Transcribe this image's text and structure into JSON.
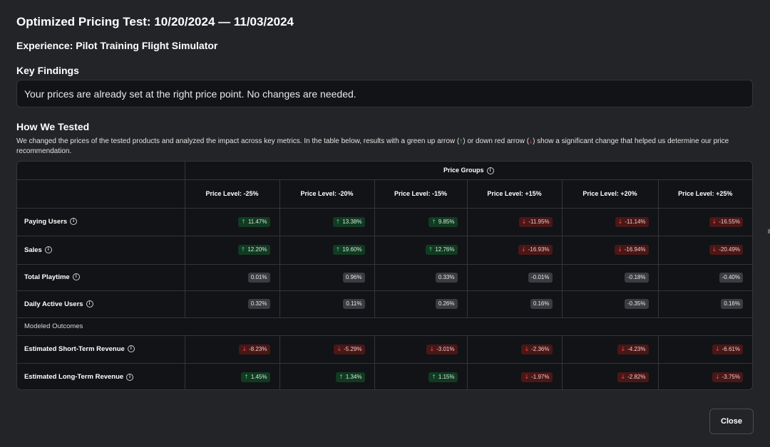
{
  "title": "Optimized Pricing Test: 10/20/2024 — 11/03/2024",
  "experience": "Experience: Pilot Training Flight Simulator",
  "key_findings": {
    "heading": "Key Findings",
    "text": "Your prices are already set at the right price point. No changes are needed."
  },
  "how_tested": {
    "heading": "How We Tested",
    "desc_part1": "We changed the prices of the tested products and analyzed the impact across key metrics. In the table below, results with a green up arrow (",
    "desc_part2": ") or down red arrow (",
    "desc_part3": ") show a significant change that helped us determine our price recommendation."
  },
  "table": {
    "group_header": "Price Groups",
    "columns": [
      "Price Level: -25%",
      "Price Level: -20%",
      "Price Level: -15%",
      "Price Level: +15%",
      "Price Level: +20%",
      "Price Level: +25%"
    ],
    "rows": [
      {
        "label": "Paying Users",
        "cells": [
          {
            "v": "11.47%",
            "t": "up"
          },
          {
            "v": "13.38%",
            "t": "up"
          },
          {
            "v": "9.85%",
            "t": "up"
          },
          {
            "v": "-11.95%",
            "t": "down"
          },
          {
            "v": "-11.14%",
            "t": "down"
          },
          {
            "v": "-16.55%",
            "t": "down"
          }
        ]
      },
      {
        "label": "Sales",
        "cells": [
          {
            "v": "12.20%",
            "t": "up"
          },
          {
            "v": "19.60%",
            "t": "up"
          },
          {
            "v": "12.76%",
            "t": "up"
          },
          {
            "v": "-16.93%",
            "t": "down"
          },
          {
            "v": "-16.94%",
            "t": "down"
          },
          {
            "v": "-20.49%",
            "t": "down"
          }
        ]
      },
      {
        "label": "Total Playtime",
        "cells": [
          {
            "v": "0.01%",
            "t": "neutral"
          },
          {
            "v": "0.96%",
            "t": "neutral"
          },
          {
            "v": "0.33%",
            "t": "neutral"
          },
          {
            "v": "-0.01%",
            "t": "neutral"
          },
          {
            "v": "-0.18%",
            "t": "neutral"
          },
          {
            "v": "-0.40%",
            "t": "neutral"
          }
        ]
      },
      {
        "label": "Daily Active Users",
        "cells": [
          {
            "v": "0.32%",
            "t": "neutral"
          },
          {
            "v": "0.11%",
            "t": "neutral"
          },
          {
            "v": "0.26%",
            "t": "neutral"
          },
          {
            "v": "0.16%",
            "t": "neutral"
          },
          {
            "v": "-0.35%",
            "t": "neutral"
          },
          {
            "v": "0.16%",
            "t": "neutral"
          }
        ]
      }
    ],
    "section_label": "Modeled Outcomes",
    "modeled_rows": [
      {
        "label": "Estimated Short-Term Revenue",
        "cells": [
          {
            "v": "-8.23%",
            "t": "down"
          },
          {
            "v": "-5.29%",
            "t": "down"
          },
          {
            "v": "-3.01%",
            "t": "down"
          },
          {
            "v": "-2.36%",
            "t": "down"
          },
          {
            "v": "-4.23%",
            "t": "down"
          },
          {
            "v": "-6.61%",
            "t": "down"
          }
        ]
      },
      {
        "label": "Estimated Long-Term Revenue",
        "cells": [
          {
            "v": "1.45%",
            "t": "up"
          },
          {
            "v": "1.34%",
            "t": "up"
          },
          {
            "v": "1.15%",
            "t": "up"
          },
          {
            "v": "-1.97%",
            "t": "down"
          },
          {
            "v": "-2.82%",
            "t": "down"
          },
          {
            "v": "-3.75%",
            "t": "down"
          }
        ]
      }
    ]
  },
  "close_label": "Close",
  "icons": {
    "up": "arrow-up-icon",
    "down": "arrow-down-icon",
    "info": "info-icon"
  },
  "colors": {
    "up": "#3fcf6e",
    "down": "#ef4a4a",
    "background": "#232427",
    "panel": "#121316"
  }
}
